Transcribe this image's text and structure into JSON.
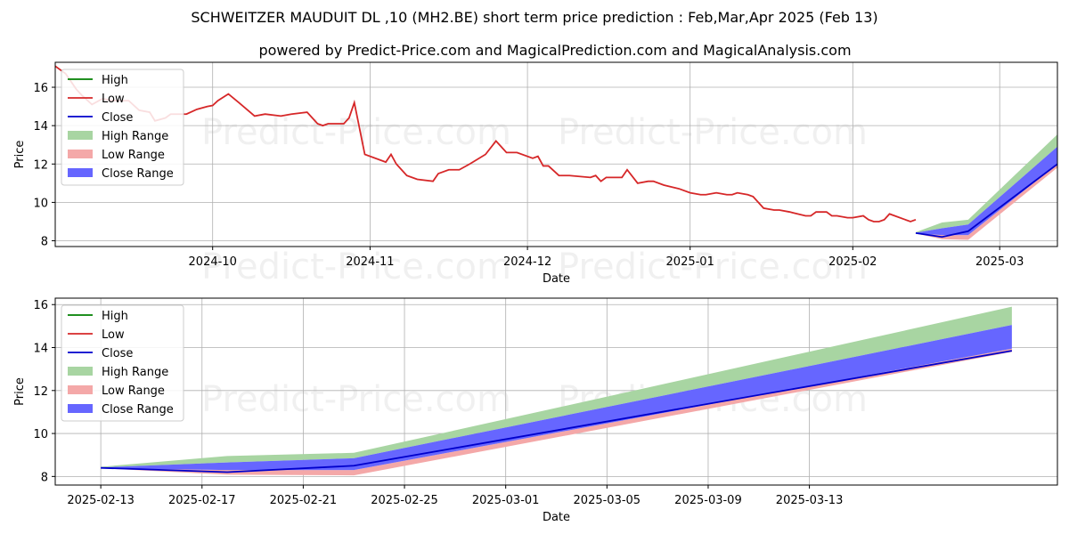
{
  "titles": {
    "line1": "SCHWEITZER MAUDUIT DL ,10 (MH2.BE) short term price prediction : Feb,Mar,Apr 2025 (Feb 13)",
    "line2": "powered by Predict-Price.com and MagicalPrediction.com and MagicalAnalysis.com"
  },
  "watermark": "Predict-Price.com",
  "legend": [
    "High",
    "Low",
    "Close",
    "High Range",
    "Low Range",
    "Close Range"
  ],
  "colors": {
    "high": "#008000",
    "low": "#d62728",
    "close": "#0000cc",
    "high_range": "#a8d5a2",
    "low_range": "#f4a8a8",
    "close_range": "#6666ff"
  },
  "chart_data": [
    {
      "type": "line",
      "xlabel": "Date",
      "ylabel": "Price",
      "xlim_days": [
        -16,
        175
      ],
      "ylim": [
        7.7,
        17.3
      ],
      "yticks": [
        8,
        10,
        12,
        14,
        16
      ],
      "xticks": [
        {
          "label": "2024-10",
          "day": 14
        },
        {
          "label": "2024-11",
          "day": 44
        },
        {
          "label": "2024-12",
          "day": 74
        },
        {
          "label": "2025-01",
          "day": 105
        },
        {
          "label": "2025-02",
          "day": 136
        },
        {
          "label": "2025-03",
          "day": 164
        }
      ],
      "history": {
        "days": [
          -16,
          -14,
          -12,
          -11,
          -9,
          -7,
          -5,
          -2,
          0,
          2,
          3,
          5,
          6,
          7,
          9,
          11,
          13,
          14,
          15,
          17,
          19,
          22,
          24,
          27,
          29,
          32,
          34,
          35,
          36,
          39,
          40,
          41,
          43,
          47,
          48,
          49,
          51,
          53,
          56,
          57,
          59,
          61,
          63,
          66,
          68,
          70,
          71,
          72,
          75,
          76,
          77,
          78,
          80,
          81,
          82,
          86,
          87,
          88,
          89,
          90,
          91,
          92,
          93,
          95,
          97,
          98,
          100,
          103,
          105,
          107,
          108,
          110,
          112,
          113,
          114,
          116,
          117,
          119,
          121,
          122,
          124,
          127,
          128,
          129,
          131,
          132,
          133,
          135,
          136,
          138,
          139,
          140,
          141,
          142,
          143,
          146,
          147,
          148
        ],
        "low": [
          17.1,
          16.7,
          15.9,
          15.6,
          15.1,
          15.4,
          15.3,
          15.3,
          14.8,
          14.7,
          14.25,
          14.4,
          14.6,
          14.6,
          14.6,
          14.85,
          15,
          15.05,
          15.3,
          15.65,
          15.2,
          14.5,
          14.6,
          14.5,
          14.6,
          14.7,
          14.1,
          14.0,
          14.1,
          14.1,
          14.4,
          15.2,
          12.5,
          12.1,
          12.5,
          12.0,
          11.4,
          11.2,
          11.1,
          11.5,
          11.7,
          11.7,
          12.0,
          12.5,
          13.2,
          12.6,
          12.6,
          12.6,
          12.3,
          12.4,
          11.9,
          11.9,
          11.4,
          11.4,
          11.4,
          11.3,
          11.4,
          11.1,
          11.3,
          11.3,
          11.3,
          11.3,
          11.7,
          11.0,
          11.1,
          11.1,
          10.9,
          10.7,
          10.5,
          10.4,
          10.4,
          10.5,
          10.4,
          10.4,
          10.5,
          10.4,
          10.3,
          9.7,
          9.6,
          9.6,
          9.5,
          9.3,
          9.3,
          9.5,
          9.5,
          9.3,
          9.3,
          9.2,
          9.2,
          9.3,
          9.1,
          9.0,
          9.0,
          9.1,
          9.4,
          9.1,
          9.0,
          9.1
        ]
      }
    },
    {
      "type": "area",
      "xlabel": "Date",
      "ylabel": "Price",
      "xlim_days": [
        -1.8,
        37.8
      ],
      "ylim": [
        7.6,
        16.3
      ],
      "yticks": [
        8,
        10,
        12,
        14,
        16
      ],
      "xticks": [
        {
          "label": "2025-02-13",
          "day": 0
        },
        {
          "label": "2025-02-17",
          "day": 4
        },
        {
          "label": "2025-02-21",
          "day": 8
        },
        {
          "label": "2025-02-25",
          "day": 12
        },
        {
          "label": "2025-03-01",
          "day": 16
        },
        {
          "label": "2025-03-05",
          "day": 20
        },
        {
          "label": "2025-03-09",
          "day": 24
        },
        {
          "label": "2025-03-13",
          "day": 28
        }
      ],
      "forecast": {
        "days": [
          0,
          5,
          10,
          36
        ],
        "close": [
          8.4,
          8.2,
          8.5,
          13.85
        ],
        "high_range_top": [
          8.45,
          8.95,
          9.1,
          15.9
        ],
        "close_range_top": [
          8.42,
          8.65,
          8.85,
          15.05
        ],
        "close_range_bottom": [
          8.38,
          8.3,
          8.3,
          13.95
        ],
        "low_range_bottom": [
          8.38,
          8.08,
          8.05,
          13.8
        ]
      }
    }
  ]
}
